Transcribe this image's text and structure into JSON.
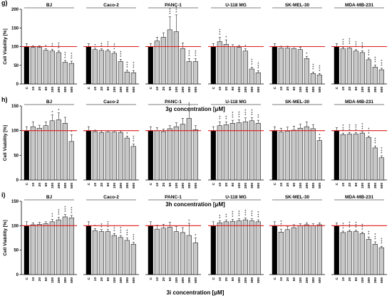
{
  "chart_data": [
    {
      "type": "bar",
      "panel_label": "g)",
      "compound_label": "3g",
      "xlabel": "concentration [μM]",
      "ylabel": "Cell Viability [%]",
      "ylim": [
        0,
        200
      ],
      "yticks": [
        0,
        50,
        100,
        150,
        200
      ],
      "reference_line": 100,
      "categories": [
        "C",
        "10",
        "20",
        "50",
        "100",
        "200",
        "300",
        "500"
      ],
      "series": [
        {
          "name": "BJ",
          "values": [
            100,
            98,
            98,
            90,
            88,
            84,
            58,
            55
          ],
          "errors": [
            8,
            4,
            4,
            4,
            5,
            5,
            5,
            6
          ],
          "stars": [
            "",
            "",
            "",
            "*",
            "**",
            "***",
            "***",
            "***"
          ]
        },
        {
          "name": "Caco-2",
          "values": [
            100,
            92,
            90,
            88,
            82,
            60,
            32,
            30
          ],
          "errors": [
            8,
            4,
            4,
            4,
            4,
            6,
            5,
            6
          ],
          "stars": [
            "",
            "*",
            "**",
            "***",
            "***",
            "***",
            "***",
            "***"
          ]
        },
        {
          "name": "PANC-1",
          "values": [
            100,
            115,
            125,
            145,
            140,
            95,
            60,
            60
          ],
          "errors": [
            8,
            10,
            12,
            35,
            45,
            15,
            8,
            8
          ],
          "stars": [
            "",
            "",
            "",
            "***",
            "***",
            "",
            "***",
            "***"
          ]
        },
        {
          "name": "U-118 MG",
          "values": [
            100,
            113,
            106,
            100,
            98,
            88,
            40,
            30
          ],
          "errors": [
            8,
            12,
            12,
            5,
            5,
            6,
            5,
            5
          ],
          "stars": [
            "",
            "***",
            "*",
            "",
            "",
            "*",
            "***",
            "***"
          ]
        },
        {
          "name": "SK-MEL-30",
          "values": [
            100,
            96,
            96,
            95,
            92,
            68,
            28,
            24
          ],
          "errors": [
            8,
            5,
            5,
            5,
            6,
            6,
            4,
            4
          ],
          "stars": [
            "",
            "",
            "",
            "",
            "",
            "*",
            "***",
            "***"
          ]
        },
        {
          "name": "MDA-MB-231",
          "values": [
            100,
            94,
            96,
            88,
            84,
            65,
            45,
            38
          ],
          "errors": [
            8,
            4,
            4,
            4,
            5,
            5,
            6,
            4
          ],
          "stars": [
            "",
            "***",
            "***",
            "***",
            "***",
            "***",
            "***",
            "***"
          ]
        }
      ]
    },
    {
      "type": "bar",
      "panel_label": "h)",
      "compound_label": "3h",
      "xlabel": "concentration [μM]",
      "ylabel": "Cell Viability [%]",
      "ylim": [
        0,
        150
      ],
      "yticks": [
        0,
        50,
        100,
        150
      ],
      "reference_line": 100,
      "categories": [
        "C",
        "10",
        "20",
        "50",
        "100",
        "200",
        "300",
        "500"
      ],
      "series": [
        {
          "name": "BJ",
          "values": [
            100,
            108,
            105,
            110,
            120,
            122,
            115,
            78
          ],
          "errors": [
            8,
            10,
            6,
            8,
            12,
            14,
            12,
            14
          ],
          "stars": [
            "",
            "",
            "",
            "",
            "*",
            "*",
            "",
            "*"
          ]
        },
        {
          "name": "Caco-2",
          "values": [
            100,
            98,
            96,
            97,
            97,
            96,
            85,
            68
          ],
          "errors": [
            8,
            3,
            3,
            3,
            3,
            3,
            4,
            5
          ],
          "stars": [
            "",
            "",
            "",
            "",
            "",
            "",
            "*",
            "***"
          ]
        },
        {
          "name": "PANC-1",
          "values": [
            100,
            100,
            98,
            104,
            108,
            113,
            125,
            102
          ],
          "errors": [
            8,
            6,
            5,
            6,
            8,
            12,
            15,
            8
          ],
          "stars": [
            "",
            "",
            "",
            "",
            "",
            "",
            "***",
            ""
          ]
        },
        {
          "name": "U-118 MG",
          "values": [
            100,
            110,
            112,
            115,
            116,
            118,
            120,
            115
          ],
          "errors": [
            8,
            8,
            6,
            6,
            6,
            8,
            6,
            6
          ],
          "stars": [
            "",
            "**",
            "**",
            "***",
            "***",
            "***",
            "***",
            "**"
          ]
        },
        {
          "name": "SK-MEL-30",
          "values": [
            100,
            97,
            99,
            101,
            105,
            108,
            104,
            80
          ],
          "errors": [
            8,
            8,
            8,
            8,
            8,
            10,
            8,
            6
          ],
          "stars": [
            "",
            "",
            "",
            "",
            "",
            "",
            "",
            "*"
          ]
        },
        {
          "name": "MDA-MB-231",
          "values": [
            100,
            92,
            93,
            93,
            95,
            86,
            65,
            45
          ],
          "errors": [
            6,
            3,
            3,
            3,
            3,
            3,
            4,
            4
          ],
          "stars": [
            "",
            "***",
            "***",
            "***",
            "***",
            "***",
            "***",
            "***"
          ]
        }
      ]
    },
    {
      "type": "bar",
      "panel_label": "i)",
      "compound_label": "3i",
      "xlabel": "concentration [μM]",
      "ylabel": "Cell Viability [%]",
      "ylim": [
        0,
        150
      ],
      "yticks": [
        0,
        50,
        100,
        150
      ],
      "reference_line": 100,
      "categories": [
        "C",
        "10",
        "20",
        "50",
        "100",
        "200",
        "300",
        "500"
      ],
      "series": [
        {
          "name": "BJ",
          "values": [
            100,
            102,
            103,
            104,
            108,
            112,
            118,
            116
          ],
          "errors": [
            8,
            4,
            4,
            4,
            5,
            5,
            5,
            5
          ],
          "stars": [
            "",
            "",
            "",
            "",
            "**",
            "***",
            "***",
            "***"
          ]
        },
        {
          "name": "Caco-2",
          "values": [
            100,
            90,
            88,
            88,
            80,
            76,
            70,
            62
          ],
          "errors": [
            8,
            4,
            4,
            4,
            4,
            4,
            5,
            4
          ],
          "stars": [
            "",
            "*",
            "**",
            "***",
            "***",
            "***",
            "***",
            "***"
          ]
        },
        {
          "name": "PANC-1",
          "values": [
            100,
            93,
            95,
            97,
            88,
            86,
            80,
            65
          ],
          "errors": [
            8,
            8,
            8,
            10,
            10,
            10,
            25,
            10
          ],
          "stars": [
            "",
            "",
            "",
            "",
            "",
            "",
            "*",
            "*"
          ]
        },
        {
          "name": "U-118 MG",
          "values": [
            100,
            106,
            108,
            109,
            110,
            112,
            110,
            108
          ],
          "errors": [
            8,
            4,
            4,
            4,
            4,
            4,
            4,
            4
          ],
          "stars": [
            "",
            "**",
            "**",
            "***",
            "***",
            "***",
            "***",
            "***"
          ]
        },
        {
          "name": "SK-MEL-30",
          "values": [
            100,
            87,
            92,
            96,
            100,
            102,
            100,
            102
          ],
          "errors": [
            8,
            6,
            6,
            6,
            4,
            4,
            4,
            4
          ],
          "stars": [
            "",
            "***",
            "",
            "",
            "",
            "",
            "",
            ""
          ]
        },
        {
          "name": "MDA-MB-231",
          "values": [
            100,
            86,
            88,
            88,
            84,
            72,
            62,
            55
          ],
          "errors": [
            6,
            3,
            3,
            3,
            3,
            5,
            5,
            3
          ],
          "stars": [
            "",
            "***",
            "***",
            "***",
            "***",
            "**",
            "***",
            "***"
          ]
        }
      ]
    }
  ],
  "colors": {
    "control_bar": "#000000",
    "treatment_bar": "#c8c8c8",
    "reference_line": "#e0191c",
    "axis": "#000000"
  }
}
